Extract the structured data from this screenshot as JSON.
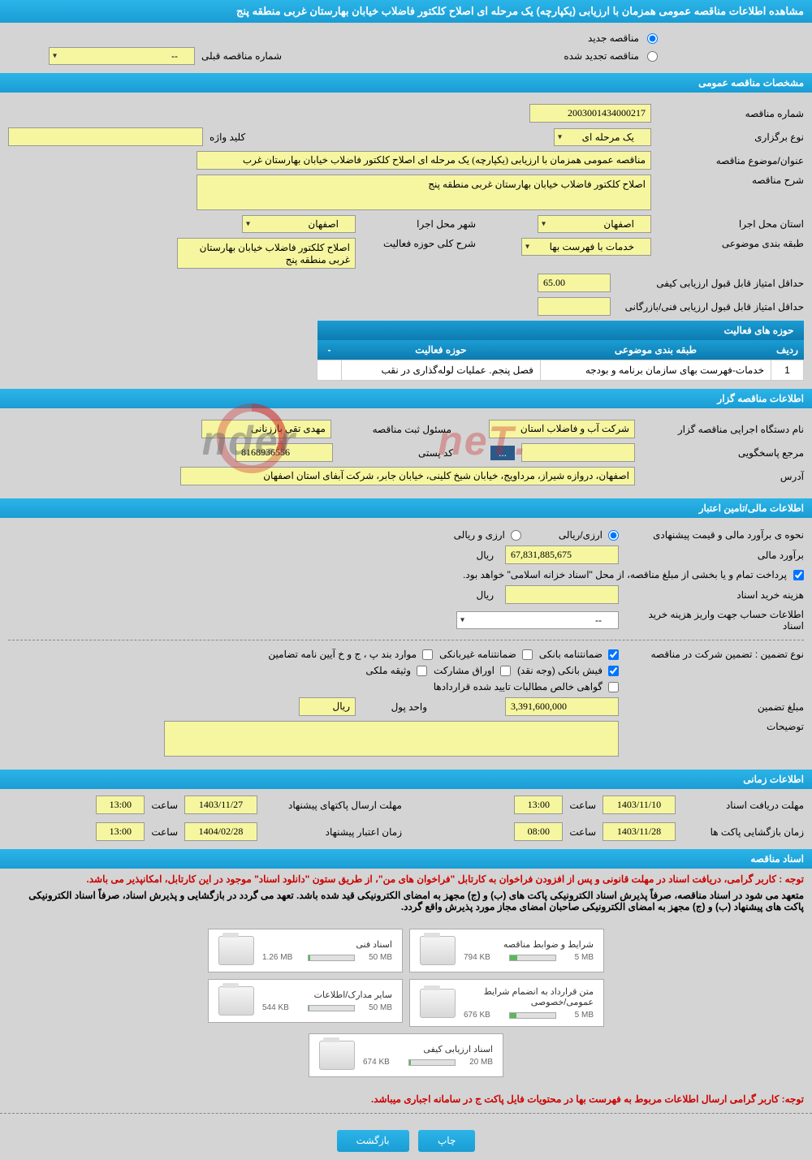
{
  "title": "مشاهده اطلاعات مناقصه عمومی همزمان با ارزیابی (یکپارچه) یک مرحله ای اصلاح کلکتور فاضلاب خیابان بهارستان غربی منطقه پنج",
  "top": {
    "new_tender": "مناقصه جدید",
    "renewed_tender": "مناقصه تجدید شده",
    "prev_tender_label": "شماره مناقصه قبلی",
    "prev_tender_value": "--"
  },
  "sec1": {
    "header": "مشخصات مناقصه عمومی",
    "tender_no_label": "شماره مناقصه",
    "tender_no": "2003001434000217",
    "type_label": "نوع برگزاری",
    "type_value": "یک مرحله ای",
    "keyword_label": "کلید واژه",
    "keyword_value": "",
    "subject_label": "عنوان/موضوع مناقصه",
    "subject_value": "مناقصه عمومی همزمان با ارزیابی (یکپارچه) یک مرحله ای اصلاح کلکتور فاضلاب خیابان بهارستان غرب",
    "desc_label": "شرح مناقصه",
    "desc_value": "اصلاح کلکتور فاضلاب خیابان بهارستان غربی منطقه پنج",
    "province_label": "استان محل اجرا",
    "province_value": "اصفهان",
    "city_label": "شهر محل اجرا",
    "city_value": "اصفهان",
    "category_label": "طبقه بندی موضوعی",
    "category_value": "خدمات با فهرست بها",
    "scope_desc_label": "شرح کلی حوزه فعالیت",
    "scope_desc_value": "اصلاح کلکتور فاضلاب خیابان بهارستان غربی منطقه پنج",
    "min_qual_label": "حداقل امتیاز قابل قبول ارزیابی کیفی",
    "min_qual_value": "65.00",
    "min_tech_label": "حداقل امتیاز قابل قبول ارزیابی فنی/بازرگانی",
    "min_tech_value": "",
    "activity_header": "حوزه های فعالیت",
    "table": {
      "col_row": "ردیف",
      "col_category": "طبقه بندی موضوعی",
      "col_scope": "حوزه فعالیت",
      "col_minus": "-",
      "row_num": "1",
      "row_cat": "خدمات-فهرست بهای سازمان برنامه و بودجه",
      "row_scope": "فصل پنجم. عملیات لوله‌گذاری در نقب"
    }
  },
  "sec2": {
    "header": "اطلاعات مناقصه گزار",
    "org_label": "نام دستگاه اجرایی مناقصه گزار",
    "org_value": "شرکت آب و فاضلاب استان",
    "resp_label": "مسئول ثبت مناقصه",
    "resp_value": "مهدی تقی باززنانی",
    "contact_label": "مرجع پاسخگویی",
    "contact_value": "",
    "postal_label": "کد پستی",
    "postal_value": "8168936556",
    "address_label": "آدرس",
    "address_value": "اصفهان، دروازه شیراز، مرداویج، خیابان شیخ کلینی، خیابان جابر، شرکت آبفای استان اصفهان",
    "ellipsis": "..."
  },
  "sec3": {
    "header": "اطلاعات مالی/تامین اعتبار",
    "estimate_method_label": "نحوه ی برآورد مالی و قیمت پیشنهادی",
    "opt_rial_currency": "ارزی/ریالی",
    "opt_rial_and_currency": "ارزی و ریالی",
    "estimate_label": "برآورد مالی",
    "estimate_value": "67,831,885,675",
    "unit_rial": "ریال",
    "payment_note": "پرداخت تمام و یا بخشی از مبلغ مناقصه، از محل \"اسناد خزانه اسلامی\" خواهد بود.",
    "doc_cost_label": "هزینه خرید اسناد",
    "doc_cost_value": "",
    "account_info_label": "اطلاعات حساب جهت واریز هزینه خرید اسناد",
    "account_info_value": "--",
    "guarantee_type_label": "نوع تضمین  :  تضمین شرکت در مناقصه",
    "chk_bank_guarantee": "ضمانتنامه بانکی",
    "chk_nonbank_guarantee": "ضمانتنامه غیربانکی",
    "chk_clauses": "موارد بند پ ، ج و خ آیین نامه تضامین",
    "chk_cash": "فیش بانکی (وجه نقد)",
    "chk_securities": "اوراق مشارکت",
    "chk_property": "وثیقه ملکی",
    "chk_receivables": "گواهی خالص مطالبات تایید شده قراردادها",
    "guarantee_amount_label": "مبلغ تضمین",
    "guarantee_amount_value": "3,391,600,000",
    "money_unit_label": "واحد پول",
    "money_unit_value": "ریال",
    "notes_label": "توضیحات",
    "notes_value": ""
  },
  "sec4": {
    "header": "اطلاعات زمانی",
    "receive_deadline_label": "مهلت دریافت اسناد",
    "receive_date": "1403/11/10",
    "receive_time_label": "ساعت",
    "receive_time": "13:00",
    "send_deadline_label": "مهلت ارسال پاکتهای پیشنهاد",
    "send_date": "1403/11/27",
    "send_time_label": "ساعت",
    "send_time": "13:00",
    "open_label": "زمان بازگشایی پاکت ها",
    "open_date": "1403/11/28",
    "open_time_label": "ساعت",
    "open_time": "08:00",
    "validity_label": "زمان اعتبار پیشنهاد",
    "validity_date": "1404/02/28",
    "validity_time_label": "ساعت",
    "validity_time": "13:00"
  },
  "sec5": {
    "header": "اسناد مناقصه",
    "note1": "توجه : کاربر گرامی، دریافت اسناد در مهلت قانونی و پس از افزودن فراخوان به کارتابل \"فراخوان های من\"، از طریق ستون \"دانلود اسناد\" موجود در این کارتابل، امکانپذیر می باشد.",
    "note2": "متعهد می شود در اسناد مناقصه، صرفاً پذیرش اسناد الکترونیکی پاکت های (ب) و (ج) مجهز به امضای الکترونیکی قید شده باشد. تعهد می گردد در بازگشایی و پذیرش اسناد، صرفاً اسناد الکترونیکی پاکت های پیشنهاد (ب) و (ج) مجهز به امضای الکترونیکی صاحبان امضای مجاز مورد پذیرش واقع گردد.",
    "docs": [
      {
        "title": "شرایط و ضوابط مناقصه",
        "size": "794 KB",
        "limit": "5 MB",
        "pct": 16
      },
      {
        "title": "اسناد فنی",
        "size": "1.26 MB",
        "limit": "50 MB",
        "pct": 3
      },
      {
        "title": "متن قرارداد به انضمام شرایط عمومی/خصوصی",
        "size": "676 KB",
        "limit": "5 MB",
        "pct": 14
      },
      {
        "title": "سایر مدارک/اطلاعات",
        "size": "544 KB",
        "limit": "50 MB",
        "pct": 2
      },
      {
        "title": "اسناد ارزیابی کیفی",
        "size": "674 KB",
        "limit": "20 MB",
        "pct": 4
      }
    ],
    "note3": "توجه: کاربر گرامی ارسال اطلاعات مربوط به فهرست بها در محتویات فایل پاکت ج در سامانه اجباری میباشد."
  },
  "buttons": {
    "print": "چاپ",
    "back": "بازگشت"
  },
  "watermark": "AriaTender.neT"
}
